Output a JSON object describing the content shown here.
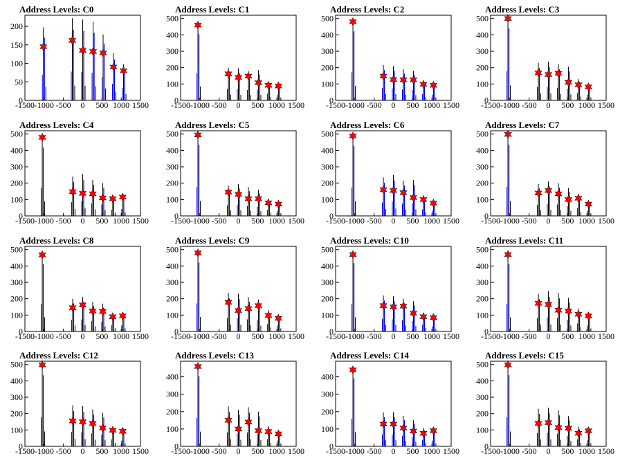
{
  "colors": {
    "histogram": "#0000ff",
    "fine_bins": "#000000",
    "marker": "#ff0000",
    "axes": "#000000"
  },
  "shared": {
    "type": "bar",
    "marker_icon": "red-star-marker",
    "xlim": [
      -1500,
      1500
    ],
    "xticks": [
      -1500,
      -1000,
      -500,
      0,
      500,
      1000,
      1500
    ],
    "peak_x": [
      -1050,
      -260,
      0,
      260,
      520,
      780,
      1040
    ]
  },
  "chart_data": [
    {
      "title": "Address Levels: C0",
      "ylim": [
        0,
        230
      ],
      "yticks": [
        0,
        50,
        100,
        150,
        200
      ],
      "peak_x": [
        -1020,
        -270,
        0,
        270,
        530,
        800,
        1060
      ],
      "bin_values": [
        197,
        222,
        218,
        212,
        178,
        128,
        97
      ],
      "peak_values": [
        145,
        162,
        135,
        132,
        128,
        90,
        80
      ],
      "has_first_peak": true
    },
    {
      "title": "Address Levels: C1",
      "ylim": [
        0,
        520
      ],
      "yticks": [
        0,
        100,
        200,
        300,
        400,
        500
      ],
      "bin_values": [
        470,
        200,
        195,
        180,
        185,
        115,
        95
      ],
      "peak_values": [
        460,
        162,
        140,
        148,
        108,
        92,
        88
      ]
    },
    {
      "title": "Address Levels: C2",
      "ylim": [
        0,
        520
      ],
      "yticks": [
        0,
        100,
        200,
        300,
        400,
        500
      ],
      "bin_values": [
        490,
        215,
        210,
        190,
        180,
        110,
        100
      ],
      "peak_values": [
        480,
        148,
        127,
        125,
        125,
        98,
        92
      ]
    },
    {
      "title": "Address Levels: C3",
      "ylim": [
        0,
        520
      ],
      "yticks": [
        0,
        100,
        200,
        300,
        400,
        500
      ],
      "bin_values": [
        510,
        230,
        235,
        220,
        205,
        130,
        100
      ],
      "peak_values": [
        500,
        168,
        158,
        165,
        110,
        95,
        82
      ]
    },
    {
      "title": "Address Levels: C4",
      "ylim": [
        0,
        520
      ],
      "yticks": [
        0,
        100,
        200,
        300,
        400,
        500
      ],
      "bin_values": [
        485,
        240,
        255,
        220,
        200,
        110,
        120
      ],
      "peak_values": [
        480,
        148,
        138,
        135,
        110,
        105,
        115
      ]
    },
    {
      "title": "Address Levels: C5",
      "ylim": [
        0,
        520
      ],
      "yticks": [
        0,
        100,
        200,
        300,
        400,
        500
      ],
      "bin_values": [
        505,
        185,
        195,
        175,
        160,
        105,
        90
      ],
      "peak_values": [
        495,
        145,
        132,
        105,
        105,
        80,
        72
      ]
    },
    {
      "title": "Address Levels: C6",
      "ylim": [
        0,
        520
      ],
      "yticks": [
        0,
        100,
        200,
        300,
        400,
        500
      ],
      "bin_values": [
        495,
        235,
        250,
        215,
        220,
        115,
        90
      ],
      "peak_values": [
        488,
        160,
        155,
        142,
        112,
        100,
        78
      ]
    },
    {
      "title": "Address Levels: C7",
      "ylim": [
        0,
        520
      ],
      "yticks": [
        0,
        100,
        200,
        300,
        400,
        500
      ],
      "bin_values": [
        505,
        195,
        210,
        200,
        170,
        135,
        90
      ],
      "peak_values": [
        498,
        140,
        155,
        135,
        100,
        108,
        72
      ]
    },
    {
      "title": "Address Levels: C8",
      "ylim": [
        0,
        520
      ],
      "yticks": [
        0,
        100,
        200,
        300,
        400,
        500
      ],
      "bin_values": [
        480,
        200,
        210,
        180,
        170,
        110,
        105
      ],
      "peak_values": [
        468,
        145,
        162,
        125,
        122,
        90,
        95
      ]
    },
    {
      "title": "Address Levels: C9",
      "ylim": [
        0,
        520
      ],
      "yticks": [
        0,
        100,
        200,
        300,
        400,
        500
      ],
      "bin_values": [
        490,
        235,
        230,
        210,
        195,
        130,
        105
      ],
      "peak_values": [
        480,
        178,
        128,
        140,
        158,
        98,
        80
      ]
    },
    {
      "title": "Address Levels: C10",
      "ylim": [
        0,
        520
      ],
      "yticks": [
        0,
        100,
        200,
        300,
        400,
        500
      ],
      "bin_values": [
        485,
        220,
        215,
        200,
        185,
        115,
        90
      ],
      "peak_values": [
        470,
        158,
        150,
        155,
        112,
        90,
        85
      ]
    },
    {
      "title": "Address Levels: C11",
      "ylim": [
        0,
        520
      ],
      "yticks": [
        0,
        100,
        200,
        300,
        400,
        500
      ],
      "bin_values": [
        480,
        230,
        245,
        235,
        205,
        140,
        105
      ],
      "peak_values": [
        470,
        172,
        165,
        130,
        125,
        105,
        95
      ]
    },
    {
      "title": "Address Levels: C12",
      "ylim": [
        0,
        520
      ],
      "yticks": [
        0,
        100,
        200,
        300,
        400,
        500
      ],
      "bin_values": [
        505,
        250,
        245,
        225,
        205,
        120,
        100
      ],
      "peak_values": [
        498,
        155,
        150,
        140,
        112,
        98,
        92
      ]
    },
    {
      "title": "Address Levels: C13",
      "ylim": [
        0,
        490
      ],
      "yticks": [
        0,
        100,
        200,
        300,
        400
      ],
      "bin_values": [
        470,
        230,
        210,
        225,
        200,
        115,
        95
      ],
      "peak_values": [
        460,
        150,
        100,
        140,
        90,
        85,
        72
      ]
    },
    {
      "title": "Address Levels: C14",
      "ylim": [
        0,
        490
      ],
      "yticks": [
        0,
        100,
        200,
        300,
        400
      ],
      "bin_values": [
        455,
        195,
        195,
        175,
        150,
        105,
        95
      ],
      "peak_values": [
        440,
        128,
        128,
        105,
        88,
        75,
        90
      ]
    },
    {
      "title": "Address Levels: C15",
      "ylim": [
        0,
        520
      ],
      "yticks": [
        0,
        100,
        200,
        300,
        400,
        500
      ],
      "bin_values": [
        505,
        230,
        235,
        220,
        185,
        120,
        105
      ],
      "peak_values": [
        498,
        140,
        145,
        115,
        110,
        80,
        95
      ]
    }
  ]
}
